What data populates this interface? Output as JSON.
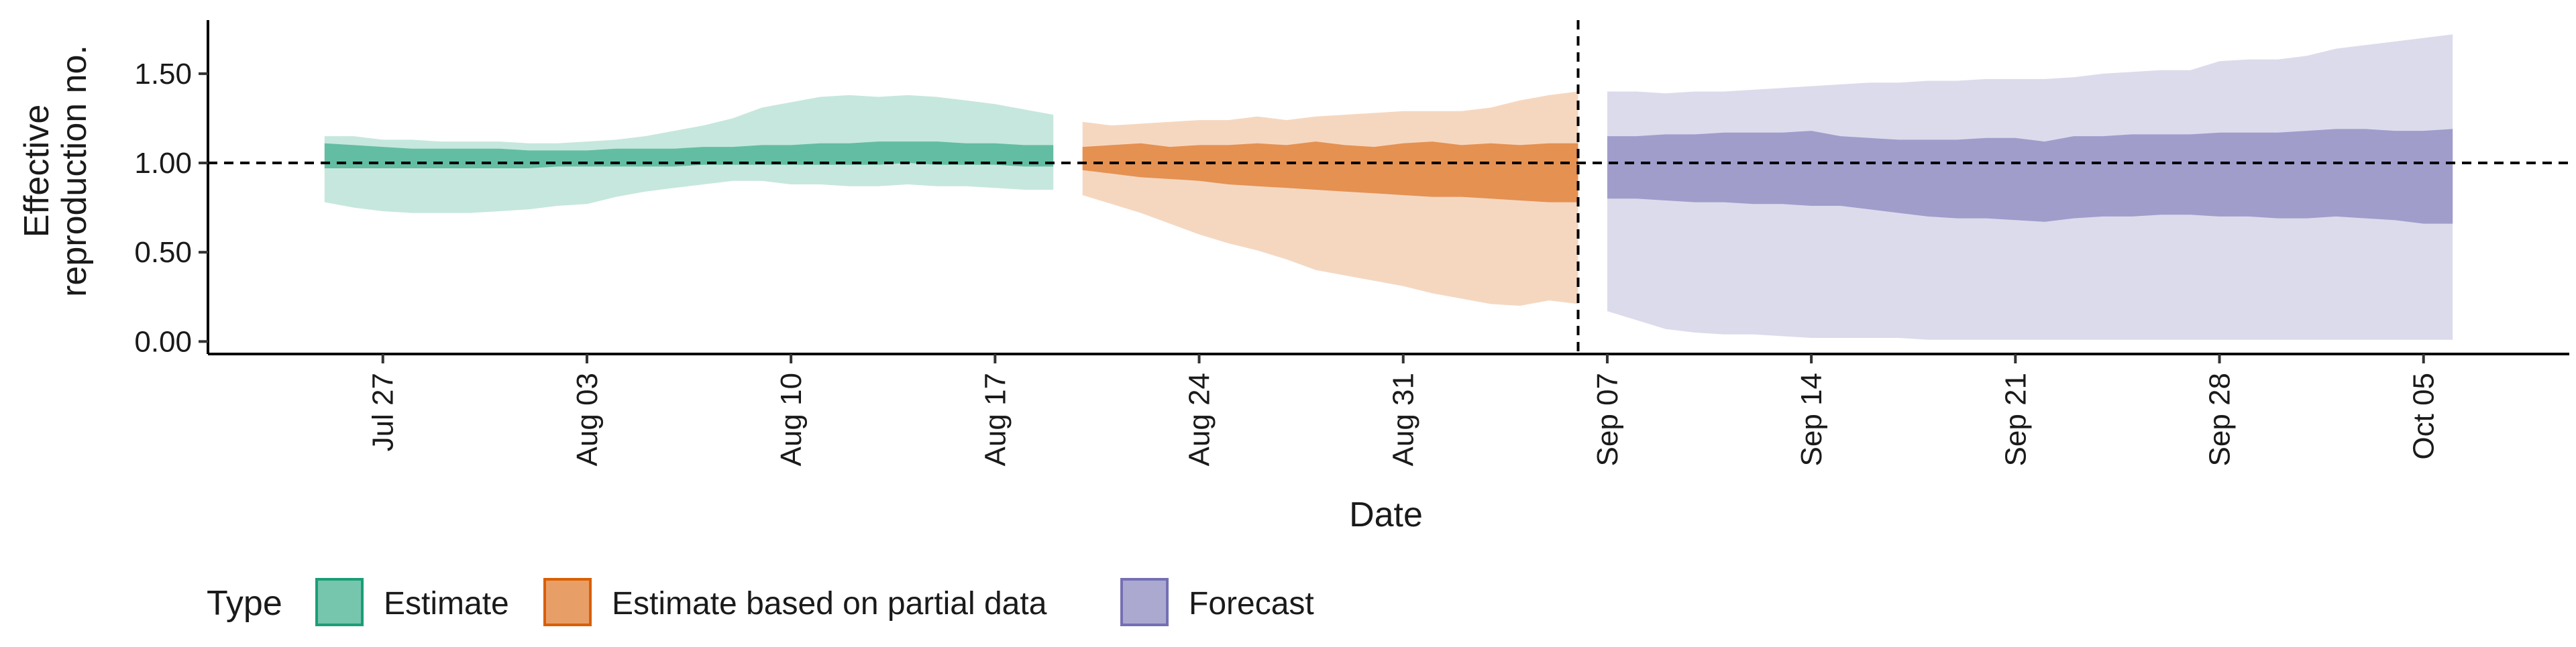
{
  "chart_data": {
    "type": "area",
    "title": "",
    "xlabel": "Date",
    "ylabel": "Effective reproduction no.",
    "ylabel_lines": [
      "Effective",
      "reproduction no."
    ],
    "ylim": [
      -0.07,
      1.8
    ],
    "xlim": [
      "2021-07-21",
      "2021-10-10"
    ],
    "x_ticks": [
      {
        "date": "2021-07-27",
        "label": "Jul 27"
      },
      {
        "date": "2021-08-03",
        "label": "Aug 03"
      },
      {
        "date": "2021-08-10",
        "label": "Aug 10"
      },
      {
        "date": "2021-08-17",
        "label": "Aug 17"
      },
      {
        "date": "2021-08-24",
        "label": "Aug 24"
      },
      {
        "date": "2021-08-31",
        "label": "Aug 31"
      },
      {
        "date": "2021-09-07",
        "label": "Sep 07"
      },
      {
        "date": "2021-09-14",
        "label": "Sep 14"
      },
      {
        "date": "2021-09-21",
        "label": "Sep 21"
      },
      {
        "date": "2021-09-28",
        "label": "Sep 28"
      },
      {
        "date": "2021-10-05",
        "label": "Oct 05"
      }
    ],
    "y_ticks": [
      {
        "value": 0,
        "label": "0.00"
      },
      {
        "value": 0.5,
        "label": "0.50"
      },
      {
        "value": 1,
        "label": "1.00"
      },
      {
        "value": 1.5,
        "label": "1.50"
      }
    ],
    "reference_line_y": 1.0,
    "reference_line_x": "2021-09-06",
    "grid": false,
    "legend": {
      "title": "Type",
      "position": "bottom-left",
      "entries": [
        {
          "label": "Estimate",
          "color": "#1b9e77"
        },
        {
          "label": "Estimate based on partial data",
          "color": "#d95f02"
        },
        {
          "label": "Forecast",
          "color": "#7570b3"
        }
      ]
    },
    "series": [
      {
        "name": "Estimate",
        "color": "#1b9e77",
        "x": [
          "2021-07-25",
          "2021-07-26",
          "2021-07-27",
          "2021-07-28",
          "2021-07-29",
          "2021-07-30",
          "2021-07-31",
          "2021-08-01",
          "2021-08-02",
          "2021-08-03",
          "2021-08-04",
          "2021-08-05",
          "2021-08-06",
          "2021-08-07",
          "2021-08-08",
          "2021-08-09",
          "2021-08-10",
          "2021-08-11",
          "2021-08-12",
          "2021-08-13",
          "2021-08-14",
          "2021-08-15",
          "2021-08-16",
          "2021-08-17",
          "2021-08-18",
          "2021-08-19"
        ],
        "lower_90": [
          0.78,
          0.75,
          0.73,
          0.72,
          0.72,
          0.72,
          0.73,
          0.74,
          0.76,
          0.77,
          0.81,
          0.84,
          0.86,
          0.88,
          0.9,
          0.9,
          0.88,
          0.88,
          0.87,
          0.87,
          0.88,
          0.87,
          0.87,
          0.86,
          0.85,
          0.85
        ],
        "upper_90": [
          1.15,
          1.15,
          1.13,
          1.13,
          1.12,
          1.12,
          1.12,
          1.11,
          1.11,
          1.12,
          1.13,
          1.15,
          1.18,
          1.21,
          1.25,
          1.31,
          1.34,
          1.37,
          1.38,
          1.37,
          1.38,
          1.37,
          1.35,
          1.33,
          1.3,
          1.27
        ],
        "lower_50": [
          0.97,
          0.97,
          0.97,
          0.97,
          0.97,
          0.97,
          0.97,
          0.97,
          0.98,
          0.98,
          0.98,
          0.98,
          0.98,
          0.99,
          0.99,
          0.99,
          0.99,
          0.99,
          0.99,
          0.99,
          1.0,
          0.99,
          0.99,
          0.99,
          0.98,
          0.98
        ],
        "upper_50": [
          1.11,
          1.1,
          1.09,
          1.08,
          1.08,
          1.08,
          1.08,
          1.07,
          1.07,
          1.07,
          1.08,
          1.08,
          1.08,
          1.09,
          1.09,
          1.1,
          1.1,
          1.11,
          1.11,
          1.12,
          1.12,
          1.12,
          1.11,
          1.11,
          1.1,
          1.1
        ]
      },
      {
        "name": "Estimate based on partial data",
        "color": "#d95f02",
        "x": [
          "2021-08-20",
          "2021-08-21",
          "2021-08-22",
          "2021-08-23",
          "2021-08-24",
          "2021-08-25",
          "2021-08-26",
          "2021-08-27",
          "2021-08-28",
          "2021-08-29",
          "2021-08-30",
          "2021-08-31",
          "2021-09-01",
          "2021-09-02",
          "2021-09-03",
          "2021-09-04",
          "2021-09-05",
          "2021-09-06"
        ],
        "lower_90": [
          0.82,
          0.77,
          0.72,
          0.66,
          0.6,
          0.55,
          0.51,
          0.46,
          0.4,
          0.37,
          0.34,
          0.31,
          0.27,
          0.24,
          0.21,
          0.2,
          0.23,
          0.21
        ],
        "upper_90": [
          1.23,
          1.21,
          1.22,
          1.23,
          1.24,
          1.24,
          1.26,
          1.24,
          1.26,
          1.27,
          1.28,
          1.29,
          1.29,
          1.29,
          1.31,
          1.35,
          1.38,
          1.4
        ],
        "lower_50": [
          0.96,
          0.94,
          0.92,
          0.91,
          0.9,
          0.88,
          0.87,
          0.86,
          0.85,
          0.84,
          0.83,
          0.82,
          0.81,
          0.81,
          0.8,
          0.79,
          0.78,
          0.78
        ],
        "upper_50": [
          1.09,
          1.1,
          1.11,
          1.09,
          1.1,
          1.1,
          1.11,
          1.1,
          1.12,
          1.1,
          1.09,
          1.11,
          1.12,
          1.1,
          1.11,
          1.1,
          1.11,
          1.11
        ]
      },
      {
        "name": "Forecast",
        "color": "#7570b3",
        "x": [
          "2021-09-07",
          "2021-09-08",
          "2021-09-09",
          "2021-09-10",
          "2021-09-11",
          "2021-09-12",
          "2021-09-13",
          "2021-09-14",
          "2021-09-15",
          "2021-09-16",
          "2021-09-17",
          "2021-09-18",
          "2021-09-19",
          "2021-09-20",
          "2021-09-21",
          "2021-09-22",
          "2021-09-23",
          "2021-09-24",
          "2021-09-25",
          "2021-09-26",
          "2021-09-27",
          "2021-09-28",
          "2021-09-29",
          "2021-09-30",
          "2021-10-01",
          "2021-10-02",
          "2021-10-03",
          "2021-10-04",
          "2021-10-05",
          "2021-10-06"
        ],
        "lower_90": [
          0.17,
          0.12,
          0.07,
          0.05,
          0.04,
          0.04,
          0.03,
          0.02,
          0.02,
          0.02,
          0.02,
          0.01,
          0.01,
          0.01,
          0.01,
          0.01,
          0.01,
          0.01,
          0.01,
          0.01,
          0.01,
          0.01,
          0.01,
          0.01,
          0.01,
          0.01,
          0.01,
          0.01,
          0.01,
          0.01
        ],
        "upper_90": [
          1.4,
          1.4,
          1.39,
          1.4,
          1.4,
          1.41,
          1.42,
          1.43,
          1.44,
          1.45,
          1.45,
          1.46,
          1.46,
          1.47,
          1.47,
          1.47,
          1.48,
          1.5,
          1.51,
          1.52,
          1.52,
          1.57,
          1.58,
          1.58,
          1.6,
          1.64,
          1.66,
          1.68,
          1.7,
          1.72
        ],
        "lower_50": [
          0.8,
          0.8,
          0.79,
          0.78,
          0.78,
          0.77,
          0.77,
          0.76,
          0.76,
          0.74,
          0.72,
          0.7,
          0.69,
          0.69,
          0.68,
          0.67,
          0.69,
          0.7,
          0.7,
          0.71,
          0.71,
          0.7,
          0.7,
          0.69,
          0.69,
          0.7,
          0.69,
          0.68,
          0.66,
          0.66
        ],
        "upper_50": [
          1.15,
          1.15,
          1.16,
          1.16,
          1.17,
          1.17,
          1.17,
          1.18,
          1.15,
          1.14,
          1.13,
          1.13,
          1.13,
          1.14,
          1.14,
          1.12,
          1.15,
          1.15,
          1.16,
          1.16,
          1.16,
          1.17,
          1.17,
          1.17,
          1.18,
          1.19,
          1.19,
          1.18,
          1.18,
          1.19
        ]
      }
    ]
  }
}
